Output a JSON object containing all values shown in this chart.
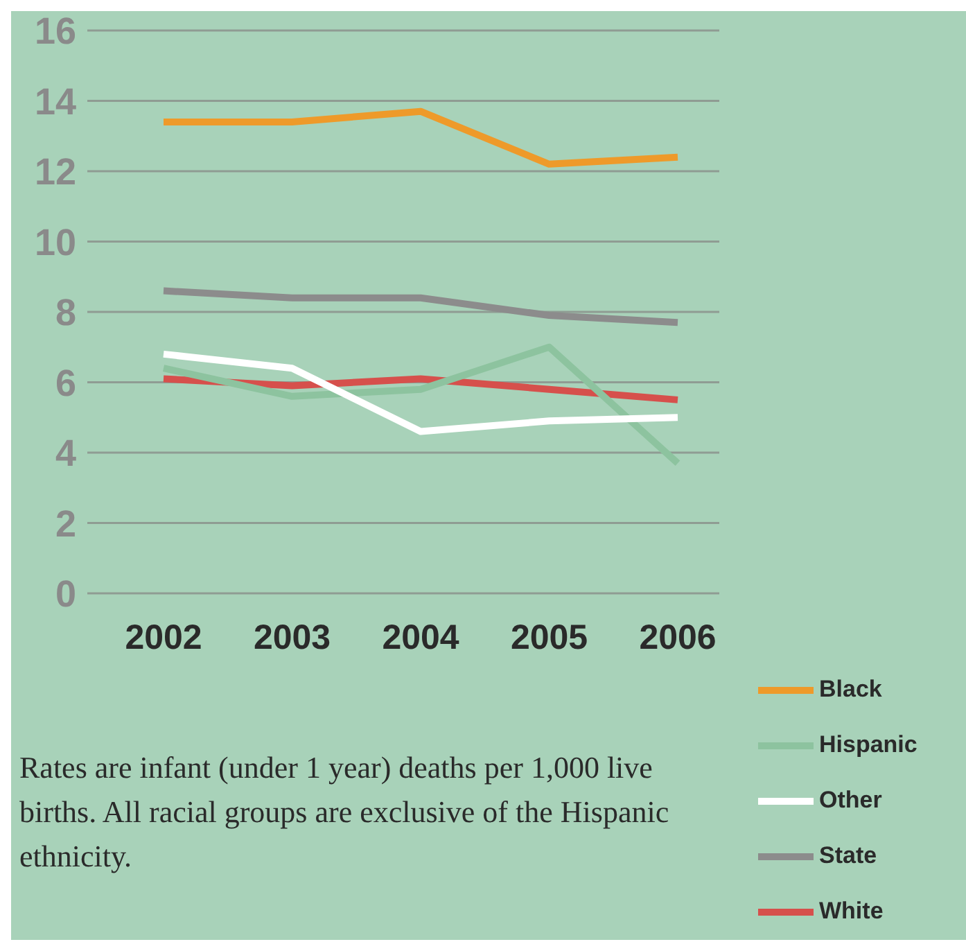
{
  "chart_data": {
    "type": "line",
    "categories": [
      "2002",
      "2003",
      "2004",
      "2005",
      "2006"
    ],
    "series": [
      {
        "name": "State",
        "color": "#8c8c8c",
        "values": [
          8.6,
          8.4,
          8.4,
          7.9,
          7.7
        ]
      },
      {
        "name": "White",
        "color": "#d6504c",
        "values": [
          6.1,
          5.9,
          6.1,
          5.8,
          5.5
        ]
      },
      {
        "name": "Black",
        "color": "#ee9a2a",
        "values": [
          13.4,
          13.4,
          13.7,
          12.2,
          12.4
        ]
      },
      {
        "name": "Hispanic",
        "color": "#8dc39f",
        "values": [
          6.4,
          5.6,
          5.8,
          7.0,
          3.7
        ]
      },
      {
        "name": "Other",
        "color": "#ffffff",
        "values": [
          6.8,
          6.4,
          4.6,
          4.9,
          5.0
        ]
      }
    ],
    "ylim": [
      0,
      16
    ],
    "yticks": [
      0,
      2,
      4,
      6,
      8,
      10,
      12,
      14,
      16
    ],
    "grid": "y",
    "legend": "bottom right",
    "marker": "none",
    "line_style": "solid",
    "annotations": [
      "Rates are infant (under 1 year) deaths per 1,000 live births. All racial groups are exclusive of the Hispanic ethnicity."
    ]
  }
}
